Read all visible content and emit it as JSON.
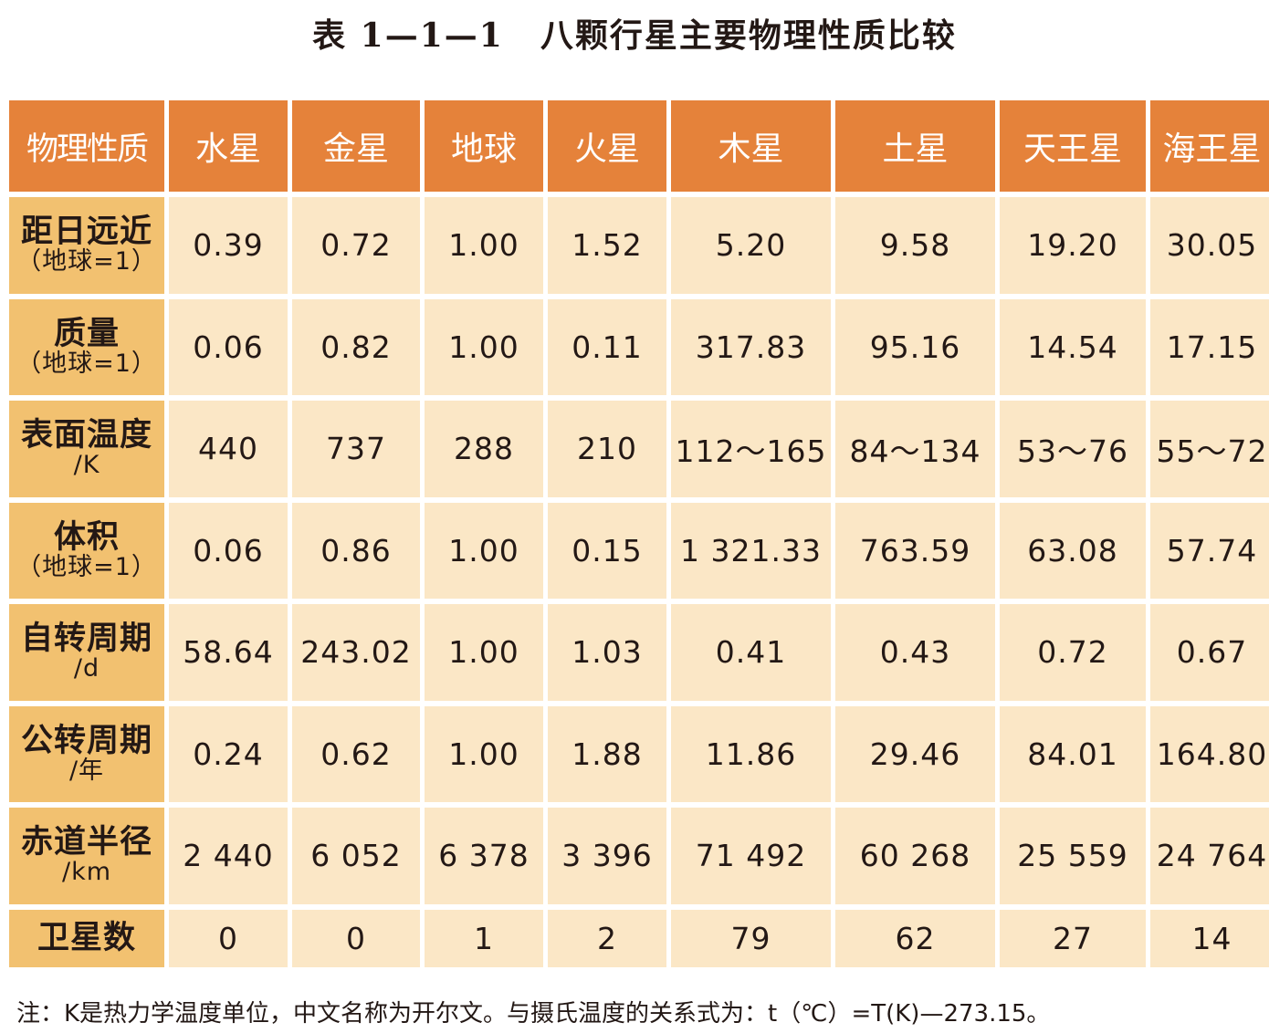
{
  "title": {
    "number": "表 1—1—1",
    "text": "八颗行星主要物理性质比较"
  },
  "table": {
    "header": [
      "物理性质",
      "水星",
      "金星",
      "地球",
      "火星",
      "木星",
      "土星",
      "天王星",
      "海王星"
    ],
    "rows": [
      {
        "label": "距日远近",
        "unit": "（地球=1）",
        "values": [
          "0.39",
          "0.72",
          "1.00",
          "1.52",
          "5.20",
          "9.58",
          "19.20",
          "30.05"
        ]
      },
      {
        "label": "质量",
        "unit": "（地球=1）",
        "values": [
          "0.06",
          "0.82",
          "1.00",
          "0.11",
          "317.83",
          "95.16",
          "14.54",
          "17.15"
        ]
      },
      {
        "label": "表面温度",
        "unit": "/K",
        "values": [
          "440",
          "737",
          "288",
          "210",
          "112～165",
          "84～134",
          "53～76",
          "55～72"
        ]
      },
      {
        "label": "体积",
        "unit": "（地球=1）",
        "values": [
          "0.06",
          "0.86",
          "1.00",
          "0.15",
          "1 321.33",
          "763.59",
          "63.08",
          "57.74"
        ]
      },
      {
        "label": "自转周期",
        "unit": "/d",
        "values": [
          "58.64",
          "243.02",
          "1.00",
          "1.03",
          "0.41",
          "0.43",
          "0.72",
          "0.67"
        ]
      },
      {
        "label": "公转周期",
        "unit": "/年",
        "values": [
          "0.24",
          "0.62",
          "1.00",
          "1.88",
          "11.86",
          "29.46",
          "84.01",
          "164.80"
        ]
      },
      {
        "label": "赤道半径",
        "unit": "/km",
        "values": [
          "2 440",
          "6 052",
          "6 378",
          "3 396",
          "71 492",
          "60 268",
          "25 559",
          "24 764"
        ]
      },
      {
        "label": "卫星数",
        "unit": "",
        "values": [
          "0",
          "0",
          "1",
          "2",
          "79",
          "62",
          "27",
          "14"
        ]
      }
    ]
  },
  "note": "注：K是热力学温度单位，中文名称为开尔文。与摄氏温度的关系式为：t（℃）=T(K)—273.15。",
  "colors": {
    "header_bg": "#e5823a",
    "row_header_bg": "#f2c170",
    "cell_bg": "#fbe7c6"
  }
}
